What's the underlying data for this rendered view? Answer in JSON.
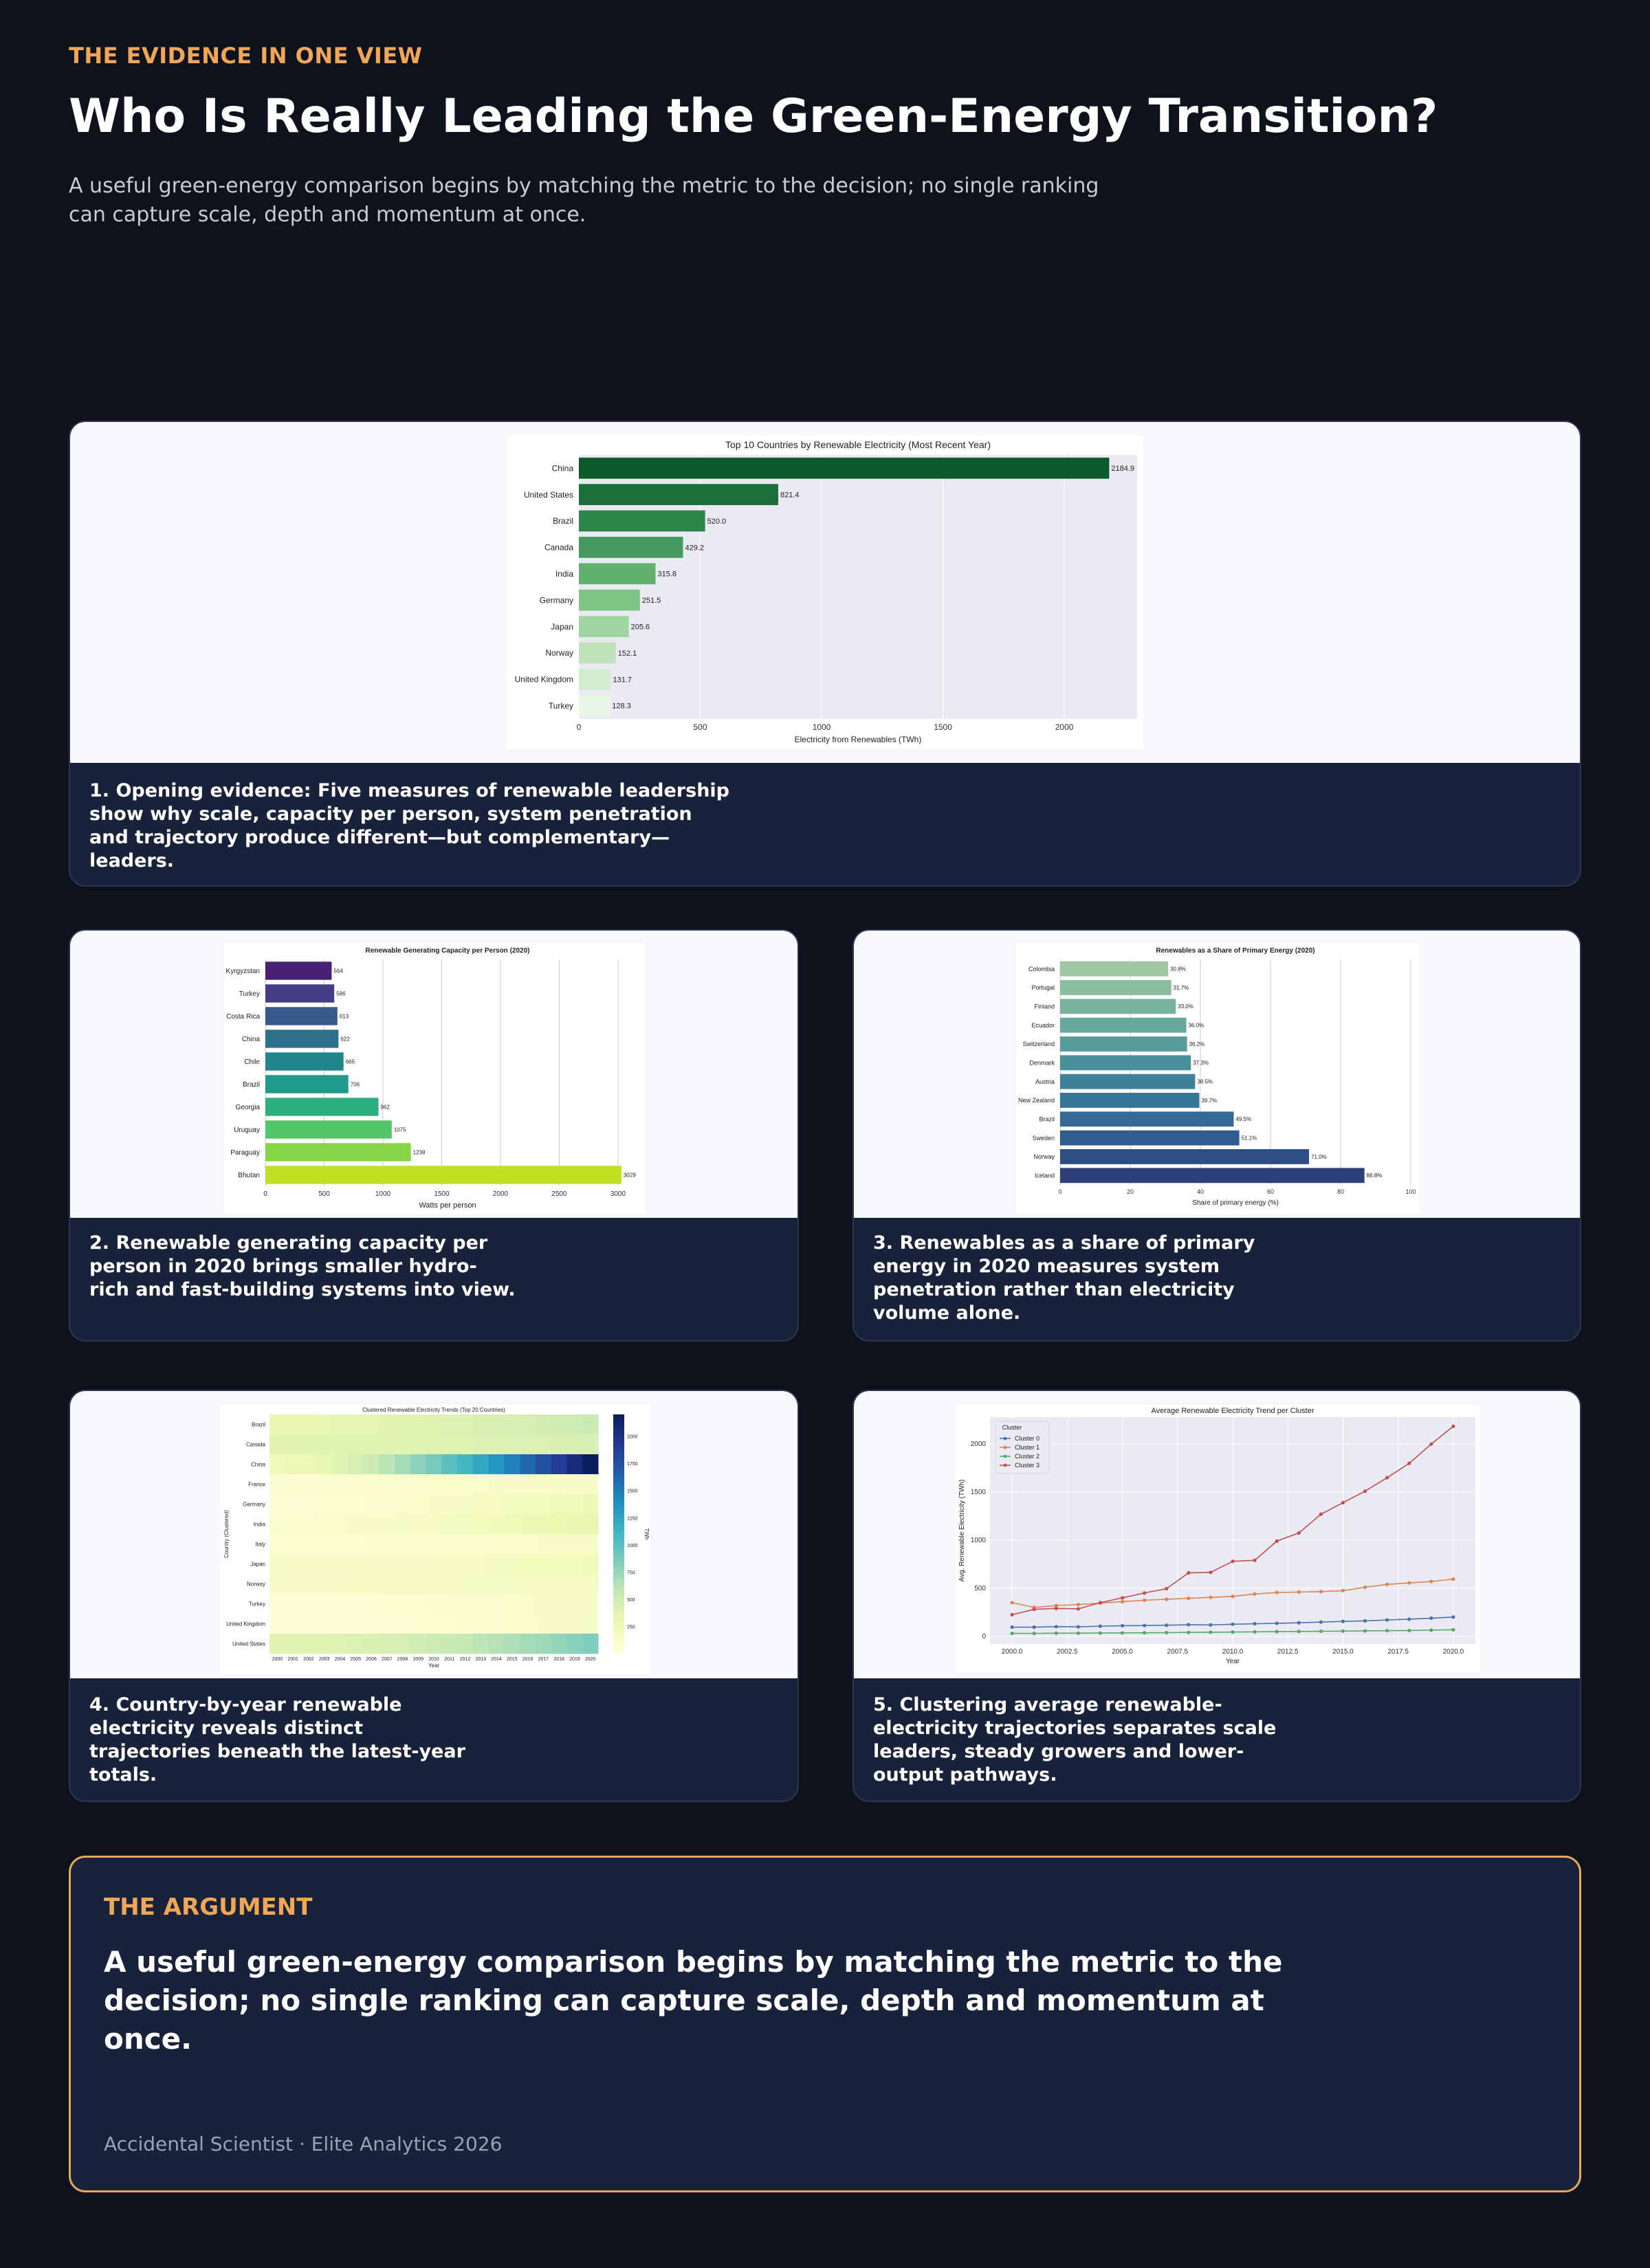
{
  "header": {
    "kicker": "THE EVIDENCE IN ONE VIEW",
    "title": "Who Is Really Leading the Green-Energy Transition?",
    "subtitle": "A useful green-energy comparison begins by matching the metric to the decision; no single ranking can capture scale, depth and momentum at once."
  },
  "cards": [
    {
      "caption": "1. Opening evidence: Five measures of renewable leadership show why scale, capacity per person, system penetration and trajectory produce different—but complementary—leaders."
    },
    {
      "caption": "2. Renewable generating capacity per person in 2020 brings smaller hydro-rich and fast-building systems into view."
    },
    {
      "caption": "3. Renewables as a share of primary energy in 2020 measures system penetration rather than electricity volume alone."
    },
    {
      "caption": "4. Country-by-year renewable electricity reveals distinct trajectories beneath the latest-year totals."
    },
    {
      "caption": "5. Clustering average renewable-electricity trajectories separates scale leaders, steady growers and lower-output pathways."
    }
  ],
  "argument": {
    "kicker": "THE ARGUMENT",
    "body": "A useful green-energy comparison begins by matching the metric to the decision; no single ranking can capture scale, depth and momentum at once.",
    "footer": "Accidental Scientist · Elite Analytics 2026"
  },
  "colors": {
    "background": "#0d121c",
    "card": "#18223a",
    "accent": "#f0a659"
  },
  "chart_data": [
    {
      "type": "bar",
      "orientation": "horizontal",
      "title": "Top 10 Countries by Renewable Electricity (Most Recent Year)",
      "xlabel": "Electricity from Renewables (TWh)",
      "ylabel": "",
      "xlim": [
        0,
        2300
      ],
      "xticks": [
        0,
        500,
        1000,
        1500,
        2000
      ],
      "categories": [
        "China",
        "United States",
        "Brazil",
        "Canada",
        "India",
        "Germany",
        "Japan",
        "Norway",
        "United Kingdom",
        "Turkey"
      ],
      "values": [
        2184.9,
        821.4,
        520.0,
        429.2,
        315.8,
        251.5,
        205.6,
        152.1,
        131.7,
        128.3
      ],
      "labels": [
        "2184.9",
        "821.4",
        "520.0",
        "429.2",
        "315.8",
        "251.5",
        "205.6",
        "152.1",
        "131.7",
        "128.3"
      ],
      "palette": "greens",
      "grid": true
    },
    {
      "type": "bar",
      "orientation": "horizontal",
      "title": "Renewable Generating Capacity per Person (2020)",
      "xlabel": "Watts per person",
      "ylabel": "",
      "xlim": [
        0,
        3100
      ],
      "xticks": [
        0,
        500,
        1000,
        1500,
        2000,
        2500,
        3000
      ],
      "categories": [
        "Kyrgyzstan",
        "Turkey",
        "Costa Rica",
        "China",
        "Chile",
        "Brazil",
        "Georgia",
        "Uruguay",
        "Paraguay",
        "Bhutan"
      ],
      "values": [
        564,
        586,
        613,
        622,
        665,
        706,
        962,
        1075,
        1238,
        3029
      ],
      "labels": [
        "564",
        "586",
        "613",
        "622",
        "665",
        "706",
        "962",
        "1075",
        "1238",
        "3029"
      ],
      "palette": "viridis",
      "grid": true
    },
    {
      "type": "bar",
      "orientation": "horizontal",
      "title": "Renewables as a Share of Primary Energy (2020)",
      "xlabel": "Share of primary energy (%)",
      "ylabel": "",
      "xlim": [
        0,
        100
      ],
      "xticks": [
        0,
        20,
        40,
        60,
        80,
        100
      ],
      "categories": [
        "Colombia",
        "Portugal",
        "Finland",
        "Ecuador",
        "Switzerland",
        "Denmark",
        "Austria",
        "New Zealand",
        "Brazil",
        "Sweden",
        "Norway",
        "Iceland"
      ],
      "values": [
        30.8,
        31.7,
        33.0,
        36.0,
        36.2,
        37.3,
        38.5,
        39.7,
        49.5,
        51.1,
        71.0,
        86.8
      ],
      "labels": [
        "30.8%",
        "31.7%",
        "33.0%",
        "36.0%",
        "36.2%",
        "37.3%",
        "38.5%",
        "39.7%",
        "49.5%",
        "51.1%",
        "71.0%",
        "86.8%"
      ],
      "palette": "crest",
      "grid": true
    },
    {
      "type": "heatmap",
      "title": "Clustered Renewable Electricity Trends (Top 20 Countries)",
      "xlabel": "Year",
      "ylabel": "Country (Clustered)",
      "colorbar_label": "TWh",
      "colorbar_ticks": [
        250,
        500,
        750,
        1000,
        1250,
        1500,
        1750,
        2000
      ],
      "x": [
        2000,
        2001,
        2002,
        2003,
        2004,
        2005,
        2006,
        2007,
        2008,
        2009,
        2010,
        2011,
        2012,
        2013,
        2014,
        2015,
        2016,
        2017,
        2018,
        2019,
        2020
      ],
      "rows": [
        "Brazil",
        "Canada",
        "China",
        "France",
        "Germany",
        "India",
        "Italy",
        "Japan",
        "Norway",
        "Turkey",
        "United Kingdom",
        "United States"
      ],
      "start": [
        305,
        350,
        225,
        70,
        35,
        75,
        50,
        105,
        140,
        30,
        10,
        350
      ],
      "end": [
        520,
        429,
        2185,
        125,
        252,
        316,
        117,
        206,
        152,
        128,
        132,
        821
      ],
      "cmap": "YlGnBu"
    },
    {
      "type": "line",
      "title": "Average Renewable Electricity Trend per Cluster",
      "xlabel": "Year",
      "ylabel": "Avg. Renewable Electricity (TWh)",
      "xlim": [
        1999,
        2021
      ],
      "ylim": [
        -80,
        2280
      ],
      "xticks": [
        2000.0,
        2002.5,
        2005.0,
        2007.5,
        2010.0,
        2012.5,
        2015.0,
        2017.5,
        2020.0
      ],
      "xtick_labels": [
        "2000.0",
        "2002.5",
        "2005.0",
        "2007.5",
        "2010.0",
        "2012.5",
        "2015.0",
        "2017.5",
        "2020.0"
      ],
      "yticks": [
        0,
        500,
        1000,
        1500,
        2000
      ],
      "legend_title": "Cluster",
      "legend_position": "top-left",
      "x": [
        2000,
        2001,
        2002,
        2003,
        2004,
        2005,
        2006,
        2007,
        2008,
        2009,
        2010,
        2011,
        2012,
        2013,
        2014,
        2015,
        2016,
        2017,
        2018,
        2019,
        2020
      ],
      "series": [
        {
          "name": "Cluster 0",
          "color": "#4c72b0",
          "values": [
            95,
            95,
            100,
            98,
            105,
            110,
            112,
            115,
            120,
            118,
            125,
            130,
            135,
            140,
            148,
            155,
            160,
            170,
            178,
            188,
            200
          ]
        },
        {
          "name": "Cluster 1",
          "color": "#dd8452",
          "values": [
            350,
            300,
            320,
            330,
            345,
            360,
            375,
            385,
            395,
            405,
            415,
            440,
            455,
            460,
            465,
            475,
            510,
            540,
            555,
            570,
            595
          ]
        },
        {
          "name": "Cluster 2",
          "color": "#55a868",
          "values": [
            30,
            30,
            32,
            32,
            34,
            35,
            36,
            38,
            40,
            42,
            44,
            46,
            48,
            50,
            52,
            54,
            56,
            58,
            60,
            64,
            68
          ]
        },
        {
          "name": "Cluster 3",
          "color": "#c44e52",
          "values": [
            225,
            280,
            290,
            285,
            350,
            400,
            450,
            495,
            660,
            665,
            780,
            790,
            990,
            1075,
            1270,
            1390,
            1510,
            1650,
            1800,
            2000,
            2185
          ]
        }
      ],
      "grid": true
    }
  ]
}
